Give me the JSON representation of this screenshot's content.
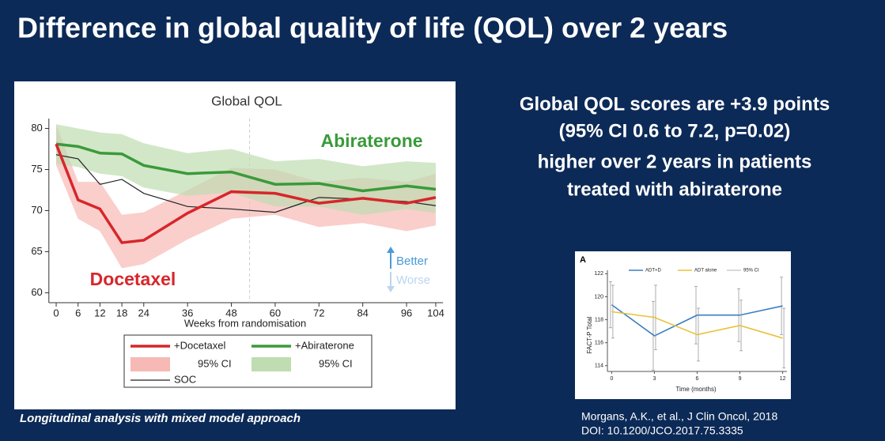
{
  "slide": {
    "title": "Difference in global quality of life (QOL) over 2 years",
    "statement": [
      "Global QOL scores are +3.9 points",
      "(95% CI 0.6 to 7.2, p=0.02)",
      "higher over 2 years in patients",
      "treated with abiraterone"
    ],
    "footnote": "Longitudinal analysis with mixed model approach",
    "citation": [
      "Morgans, A.K., et al., J Clin Oncol, 2018",
      "DOI: 10.1200/JCO.2017.75.3335"
    ]
  },
  "chart_data": [
    {
      "type": "line",
      "title": "Global QOL",
      "xlabel": "Weeks from randomisation",
      "x": [
        0,
        6,
        12,
        18,
        24,
        36,
        48,
        60,
        72,
        84,
        96,
        104
      ],
      "xlim": [
        -2,
        106
      ],
      "xticks": [
        0,
        6,
        12,
        18,
        24,
        36,
        48,
        60,
        72,
        84,
        96,
        104
      ],
      "ylim": [
        58.8,
        81.2
      ],
      "yticks": [
        60,
        65,
        70,
        75,
        80
      ],
      "vline": 53,
      "series": [
        {
          "name": "+Docetaxel",
          "color": "#d7262b",
          "values": [
            78.1,
            71.3,
            70.2,
            66.1,
            66.4,
            69.7,
            72.3,
            72.1,
            70.9,
            71.5,
            70.9,
            71.6
          ],
          "band": {
            "name": "95% CI",
            "color": "#f6b9b5",
            "upper": [
              80.5,
              73.5,
              73.5,
              69.5,
              69.8,
              72.5,
              75.2,
              75,
              73.5,
              74,
              73.5,
              74.5
            ],
            "lower": [
              75.5,
              69,
              67.5,
              63,
              63.5,
              66.5,
              69,
              69.5,
              68,
              68.5,
              67.5,
              68.2
            ]
          }
        },
        {
          "name": "+Abiraterone",
          "color": "#3a9a3a",
          "values": [
            78.1,
            77.8,
            77.0,
            76.9,
            75.5,
            74.5,
            74.7,
            73.2,
            73.3,
            72.4,
            73.0,
            72.6
          ],
          "band": {
            "name": "95% CI",
            "color": "#bfddb0",
            "upper": [
              80.5,
              80,
              79.5,
              79.3,
              78.2,
              77,
              77.5,
              76,
              76.3,
              75.4,
              76,
              75.8
            ],
            "lower": [
              75.7,
              75.3,
              74.5,
              74.2,
              72.8,
              71.8,
              72.2,
              70.5,
              70.5,
              69.5,
              70.2,
              69.7
            ]
          }
        },
        {
          "name": "SOC",
          "color": "#222222",
          "values": [
            76.8,
            76.3,
            73.2,
            73.8,
            72.1,
            70.5,
            70.2,
            69.8,
            71.6,
            71.4,
            71.1,
            70.6
          ]
        }
      ],
      "annotations": [
        "Abiraterone",
        "Docetaxel",
        "Better",
        "Worse"
      ]
    },
    {
      "type": "errorbar",
      "panel": "A",
      "xlabel": "Time (months)",
      "ylabel": "FACT-P Total",
      "x": [
        0,
        3,
        6,
        9,
        12
      ],
      "xlim": [
        -0.3,
        12.3
      ],
      "xticks": [
        0,
        3,
        6,
        9,
        12
      ],
      "ylim": [
        113.5,
        122.3
      ],
      "yticks": [
        114,
        116,
        118,
        120,
        122
      ],
      "ci_label": "95% CI",
      "series": [
        {
          "name": "ADT+D",
          "color": "#3b7fc4",
          "values": [
            119.3,
            116.6,
            118.4,
            118.4,
            119.2
          ],
          "error": [
            2.0,
            3.0,
            2.5,
            2.3,
            2.5
          ]
        },
        {
          "name": "ADT alone",
          "color": "#e8c23a",
          "values": [
            118.7,
            118.2,
            116.7,
            117.5,
            116.4
          ],
          "error": [
            2.3,
            2.8,
            2.3,
            2.2,
            2.6
          ]
        }
      ]
    }
  ]
}
